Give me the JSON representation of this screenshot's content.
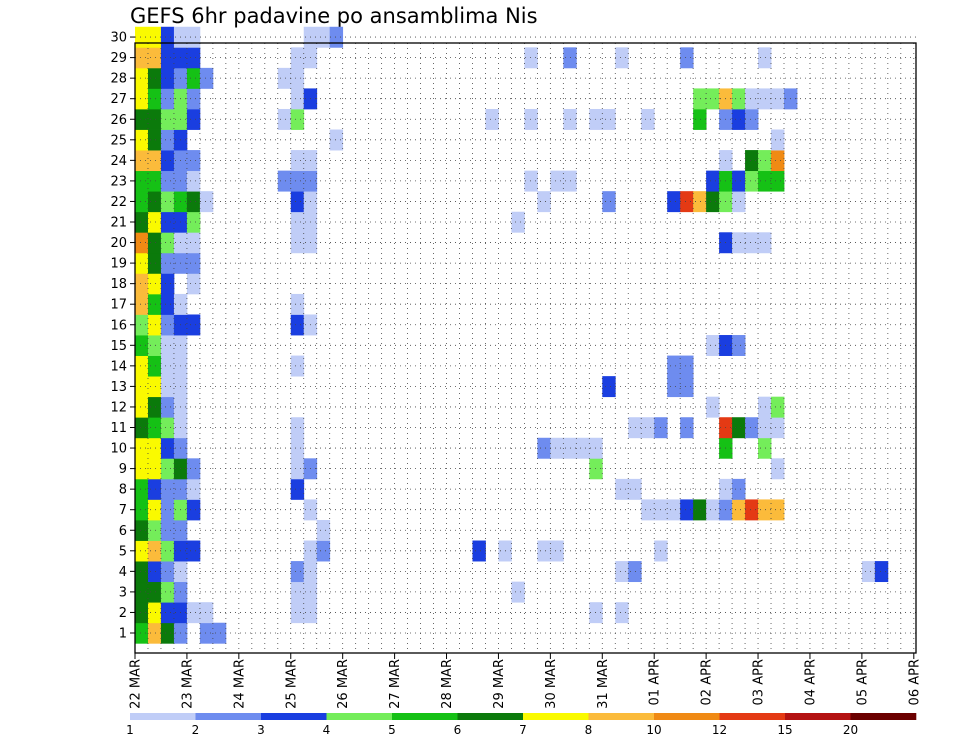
{
  "chart_data": {
    "type": "heatmap",
    "title": "GEFS 6hr padavine po ansamblima Nis",
    "xlabel": "",
    "ylabel": "",
    "x_tick_labels": [
      "22 MAR",
      "23 MAR",
      "24 MAR",
      "25 MAR",
      "26 MAR",
      "27 MAR",
      "28 MAR",
      "29 MAR",
      "30 MAR",
      "31 MAR",
      "01 APR",
      "02 APR",
      "03 APR",
      "04 APR",
      "05 APR",
      "06 APR"
    ],
    "y_tick_labels": [
      "1",
      "2",
      "3",
      "4",
      "5",
      "6",
      "7",
      "8",
      "9",
      "10",
      "11",
      "12",
      "13",
      "14",
      "15",
      "16",
      "17",
      "18",
      "19",
      "20",
      "21",
      "22",
      "23",
      "24",
      "25",
      "26",
      "27",
      "28",
      "29",
      "30"
    ],
    "time_steps_per_day": 4,
    "colorbar": {
      "tick_labels": [
        "1",
        "2",
        "3",
        "4",
        "5",
        "6",
        "7",
        "8",
        "10",
        "12",
        "15",
        "20"
      ],
      "colors": [
        "#c0cdf7",
        "#6e8cef",
        "#1a3ee0",
        "#74ed5a",
        "#15c115",
        "#0b7a0b",
        "#fafa00",
        "#fbbb3b",
        "#f08a14",
        "#e43a14",
        "#b41212",
        "#6b0000"
      ]
    },
    "rows": [
      {
        "member": "1",
        "cells": [
          [
            0,
            4
          ],
          [
            1,
            7
          ],
          [
            2,
            5
          ],
          [
            3,
            1
          ],
          [
            5,
            1
          ],
          [
            6,
            1
          ]
        ]
      },
      {
        "member": "2",
        "cells": [
          [
            0,
            5
          ],
          [
            1,
            6
          ],
          [
            2,
            2
          ],
          [
            3,
            2
          ],
          [
            4,
            0
          ],
          [
            5,
            0
          ],
          [
            12,
            0
          ],
          [
            13,
            0
          ],
          [
            35,
            0
          ],
          [
            37,
            0
          ]
        ]
      },
      {
        "member": "3",
        "cells": [
          [
            0,
            5
          ],
          [
            1,
            5
          ],
          [
            2,
            3
          ],
          [
            3,
            1
          ],
          [
            12,
            0
          ],
          [
            13,
            0
          ],
          [
            29,
            0
          ]
        ]
      },
      {
        "member": "4",
        "cells": [
          [
            0,
            5
          ],
          [
            1,
            2
          ],
          [
            2,
            1
          ],
          [
            3,
            0
          ],
          [
            12,
            1
          ],
          [
            13,
            0
          ],
          [
            37,
            0
          ],
          [
            38,
            1
          ],
          [
            56,
            0
          ],
          [
            57,
            2
          ]
        ]
      },
      {
        "member": "5",
        "cells": [
          [
            0,
            6
          ],
          [
            1,
            7
          ],
          [
            2,
            3
          ],
          [
            3,
            2
          ],
          [
            4,
            2
          ],
          [
            13,
            0
          ],
          [
            14,
            1
          ],
          [
            26,
            2
          ],
          [
            28,
            0
          ],
          [
            31,
            0
          ],
          [
            32,
            0
          ],
          [
            40,
            0
          ]
        ]
      },
      {
        "member": "6",
        "cells": [
          [
            0,
            5
          ],
          [
            1,
            3
          ],
          [
            2,
            1
          ],
          [
            3,
            1
          ],
          [
            14,
            0
          ]
        ]
      },
      {
        "member": "7",
        "cells": [
          [
            0,
            4
          ],
          [
            1,
            6
          ],
          [
            2,
            1
          ],
          [
            3,
            3
          ],
          [
            4,
            2
          ],
          [
            13,
            0
          ],
          [
            39,
            0
          ],
          [
            40,
            0
          ],
          [
            41,
            0
          ],
          [
            42,
            2
          ],
          [
            43,
            5
          ],
          [
            44,
            0
          ],
          [
            45,
            1
          ],
          [
            46,
            7
          ],
          [
            47,
            9
          ],
          [
            48,
            7
          ],
          [
            49,
            7
          ]
        ]
      },
      {
        "member": "8",
        "cells": [
          [
            0,
            4
          ],
          [
            1,
            2
          ],
          [
            2,
            1
          ],
          [
            3,
            1
          ],
          [
            4,
            0
          ],
          [
            12,
            2
          ],
          [
            37,
            0
          ],
          [
            38,
            0
          ],
          [
            45,
            0
          ],
          [
            46,
            1
          ]
        ]
      },
      {
        "member": "9",
        "cells": [
          [
            0,
            6
          ],
          [
            1,
            6
          ],
          [
            2,
            3
          ],
          [
            3,
            5
          ],
          [
            4,
            1
          ],
          [
            12,
            0
          ],
          [
            13,
            1
          ],
          [
            35,
            3
          ],
          [
            49,
            0
          ]
        ]
      },
      {
        "member": "10",
        "cells": [
          [
            0,
            6
          ],
          [
            1,
            6
          ],
          [
            2,
            2
          ],
          [
            3,
            1
          ],
          [
            12,
            0
          ],
          [
            31,
            1
          ],
          [
            32,
            0
          ],
          [
            33,
            0
          ],
          [
            34,
            0
          ],
          [
            35,
            0
          ],
          [
            45,
            4
          ],
          [
            48,
            3
          ]
        ]
      },
      {
        "member": "11",
        "cells": [
          [
            0,
            5
          ],
          [
            1,
            4
          ],
          [
            2,
            3
          ],
          [
            3,
            0
          ],
          [
            12,
            0
          ],
          [
            38,
            0
          ],
          [
            39,
            0
          ],
          [
            40,
            1
          ],
          [
            42,
            1
          ],
          [
            45,
            9
          ],
          [
            46,
            5
          ],
          [
            47,
            1
          ],
          [
            48,
            0
          ],
          [
            49,
            0
          ]
        ]
      },
      {
        "member": "12",
        "cells": [
          [
            0,
            6
          ],
          [
            1,
            5
          ],
          [
            2,
            1
          ],
          [
            3,
            0
          ],
          [
            44,
            0
          ],
          [
            48,
            0
          ],
          [
            49,
            3
          ]
        ]
      },
      {
        "member": "13",
        "cells": [
          [
            0,
            6
          ],
          [
            1,
            6
          ],
          [
            2,
            0
          ],
          [
            3,
            0
          ],
          [
            36,
            2
          ],
          [
            41,
            1
          ],
          [
            42,
            1
          ]
        ]
      },
      {
        "member": "14",
        "cells": [
          [
            0,
            6
          ],
          [
            1,
            4
          ],
          [
            2,
            0
          ],
          [
            3,
            0
          ],
          [
            12,
            0
          ],
          [
            41,
            1
          ],
          [
            42,
            1
          ]
        ]
      },
      {
        "member": "15",
        "cells": [
          [
            0,
            4
          ],
          [
            1,
            3
          ],
          [
            2,
            0
          ],
          [
            3,
            0
          ],
          [
            44,
            0
          ],
          [
            45,
            2
          ],
          [
            46,
            1
          ]
        ]
      },
      {
        "member": "16",
        "cells": [
          [
            0,
            3
          ],
          [
            1,
            6
          ],
          [
            2,
            1
          ],
          [
            3,
            2
          ],
          [
            4,
            2
          ],
          [
            12,
            2
          ],
          [
            13,
            0
          ]
        ]
      },
      {
        "member": "17",
        "cells": [
          [
            0,
            7
          ],
          [
            1,
            4
          ],
          [
            2,
            2
          ],
          [
            3,
            0
          ],
          [
            12,
            0
          ]
        ]
      },
      {
        "member": "18",
        "cells": [
          [
            0,
            7
          ],
          [
            1,
            6
          ],
          [
            2,
            2
          ],
          [
            4,
            0
          ]
        ]
      },
      {
        "member": "19",
        "cells": [
          [
            0,
            6
          ],
          [
            1,
            5
          ],
          [
            2,
            1
          ],
          [
            3,
            1
          ],
          [
            4,
            1
          ]
        ]
      },
      {
        "member": "20",
        "cells": [
          [
            0,
            8
          ],
          [
            1,
            5
          ],
          [
            2,
            3
          ],
          [
            3,
            0
          ],
          [
            4,
            0
          ],
          [
            12,
            0
          ],
          [
            13,
            0
          ],
          [
            45,
            2
          ],
          [
            46,
            0
          ],
          [
            47,
            0
          ],
          [
            48,
            0
          ]
        ]
      },
      {
        "member": "21",
        "cells": [
          [
            0,
            5
          ],
          [
            1,
            6
          ],
          [
            2,
            2
          ],
          [
            3,
            2
          ],
          [
            4,
            3
          ],
          [
            12,
            0
          ],
          [
            13,
            0
          ],
          [
            29,
            0
          ]
        ]
      },
      {
        "member": "22",
        "cells": [
          [
            0,
            4
          ],
          [
            1,
            5
          ],
          [
            2,
            3
          ],
          [
            3,
            4
          ],
          [
            4,
            5
          ],
          [
            5,
            0
          ],
          [
            12,
            2
          ],
          [
            13,
            0
          ],
          [
            31,
            0
          ],
          [
            36,
            1
          ],
          [
            41,
            2
          ],
          [
            42,
            9
          ],
          [
            43,
            7
          ],
          [
            44,
            5
          ],
          [
            45,
            3
          ],
          [
            46,
            0
          ]
        ]
      },
      {
        "member": "23",
        "cells": [
          [
            0,
            4
          ],
          [
            1,
            4
          ],
          [
            2,
            1
          ],
          [
            3,
            1
          ],
          [
            4,
            0
          ],
          [
            11,
            1
          ],
          [
            12,
            1
          ],
          [
            13,
            1
          ],
          [
            30,
            0
          ],
          [
            32,
            0
          ],
          [
            33,
            0
          ],
          [
            44,
            2
          ],
          [
            45,
            4
          ],
          [
            46,
            2
          ],
          [
            47,
            3
          ],
          [
            48,
            4
          ],
          [
            49,
            4
          ]
        ]
      },
      {
        "member": "24",
        "cells": [
          [
            0,
            7
          ],
          [
            1,
            7
          ],
          [
            2,
            2
          ],
          [
            3,
            1
          ],
          [
            4,
            1
          ],
          [
            12,
            0
          ],
          [
            13,
            0
          ],
          [
            45,
            0
          ],
          [
            47,
            5
          ],
          [
            48,
            3
          ],
          [
            49,
            8
          ]
        ]
      },
      {
        "member": "25",
        "cells": [
          [
            0,
            6
          ],
          [
            1,
            5
          ],
          [
            2,
            1
          ],
          [
            3,
            2
          ],
          [
            15,
            0
          ],
          [
            49,
            0
          ]
        ]
      },
      {
        "member": "26",
        "cells": [
          [
            0,
            5
          ],
          [
            1,
            5
          ],
          [
            2,
            3
          ],
          [
            3,
            3
          ],
          [
            4,
            2
          ],
          [
            11,
            0
          ],
          [
            12,
            3
          ],
          [
            27,
            0
          ],
          [
            30,
            0
          ],
          [
            33,
            0
          ],
          [
            35,
            0
          ],
          [
            36,
            0
          ],
          [
            39,
            0
          ],
          [
            43,
            4
          ],
          [
            45,
            1
          ],
          [
            46,
            2
          ],
          [
            47,
            1
          ]
        ]
      },
      {
        "member": "27",
        "cells": [
          [
            0,
            6
          ],
          [
            1,
            4
          ],
          [
            2,
            1
          ],
          [
            3,
            3
          ],
          [
            4,
            1
          ],
          [
            12,
            0
          ],
          [
            13,
            2
          ],
          [
            43,
            3
          ],
          [
            44,
            3
          ],
          [
            45,
            7
          ],
          [
            46,
            3
          ],
          [
            47,
            0
          ],
          [
            48,
            0
          ],
          [
            49,
            0
          ],
          [
            50,
            1
          ]
        ]
      },
      {
        "member": "28",
        "cells": [
          [
            0,
            6
          ],
          [
            1,
            5
          ],
          [
            2,
            2
          ],
          [
            3,
            1
          ],
          [
            4,
            4
          ],
          [
            5,
            1
          ],
          [
            11,
            0
          ],
          [
            12,
            0
          ]
        ]
      },
      {
        "member": "29",
        "cells": [
          [
            0,
            7
          ],
          [
            1,
            7
          ],
          [
            2,
            2
          ],
          [
            3,
            2
          ],
          [
            4,
            2
          ],
          [
            12,
            0
          ],
          [
            13,
            0
          ],
          [
            30,
            0
          ],
          [
            33,
            1
          ],
          [
            37,
            0
          ],
          [
            42,
            1
          ],
          [
            48,
            0
          ]
        ]
      },
      {
        "member": "30",
        "cells": [
          [
            0,
            6
          ],
          [
            1,
            6
          ],
          [
            2,
            2
          ],
          [
            3,
            0
          ],
          [
            4,
            0
          ],
          [
            13,
            0
          ],
          [
            14,
            0
          ],
          [
            15,
            1
          ]
        ]
      }
    ]
  }
}
